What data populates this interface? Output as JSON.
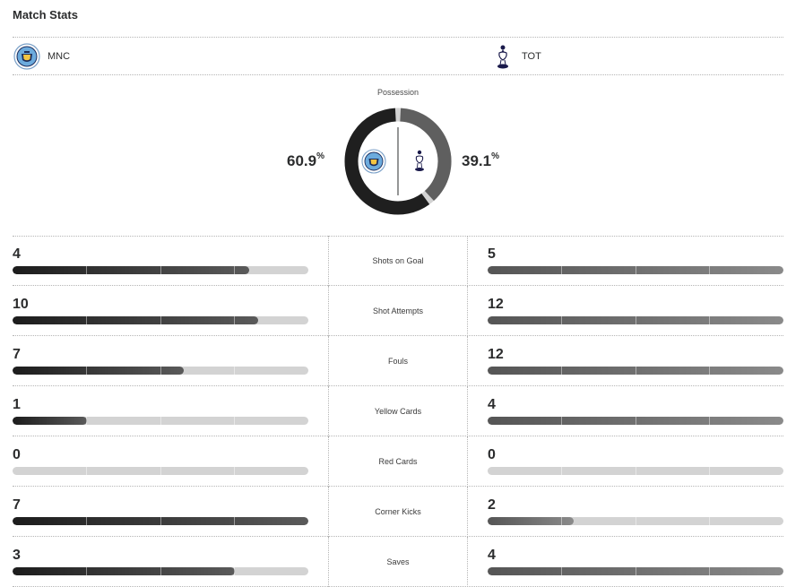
{
  "header": {
    "title": "Match Stats"
  },
  "teams": {
    "home": {
      "abbr": "MNC",
      "logo": "manchester-city-crest"
    },
    "away": {
      "abbr": "TOT",
      "logo": "tottenham-crest"
    }
  },
  "possession": {
    "label": "Possession",
    "home": 60.9,
    "away": 39.1,
    "home_text": "60.9",
    "away_text": "39.1",
    "unit": "%"
  },
  "colors": {
    "home": "#1f1f1f",
    "away": "#5f5f5f",
    "track": "#d3d3d3",
    "text": "#2b2c2d"
  },
  "stats": [
    {
      "label": "Shots on Goal",
      "home": 4,
      "away": 5,
      "home_fill": 0.8,
      "away_fill": 1.0
    },
    {
      "label": "Shot Attempts",
      "home": 10,
      "away": 12,
      "home_fill": 0.83,
      "away_fill": 1.0
    },
    {
      "label": "Fouls",
      "home": 7,
      "away": 12,
      "home_fill": 0.58,
      "away_fill": 1.0
    },
    {
      "label": "Yellow Cards",
      "home": 1,
      "away": 4,
      "home_fill": 0.25,
      "away_fill": 1.0
    },
    {
      "label": "Red Cards",
      "home": 0,
      "away": 0,
      "home_fill": 0,
      "away_fill": 0
    },
    {
      "label": "Corner Kicks",
      "home": 7,
      "away": 2,
      "home_fill": 1.0,
      "away_fill": 0.29
    },
    {
      "label": "Saves",
      "home": 3,
      "away": 4,
      "home_fill": 0.75,
      "away_fill": 1.0
    }
  ]
}
